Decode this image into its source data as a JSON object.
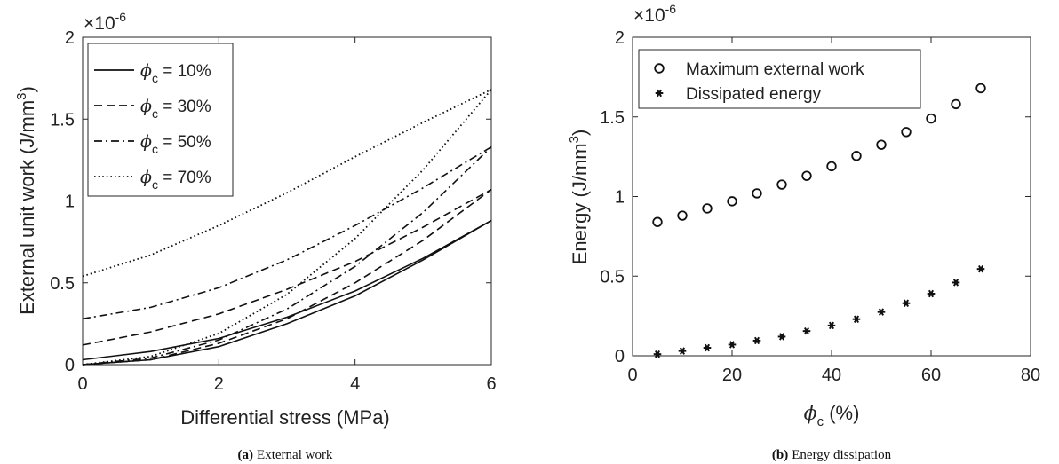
{
  "chart_data": [
    {
      "type": "line",
      "xlabel": "Differential stress (MPa)",
      "ylabel": "External unit work (J/mm",
      "ylabel_sup": "3",
      "ylabel_end": ")",
      "exponent_text": "×10",
      "exponent_power": "-6",
      "xlim": [
        0,
        6
      ],
      "ylim": [
        0,
        2
      ],
      "xticks": [
        "0",
        "2",
        "4",
        "6"
      ],
      "yticks": [
        "0",
        "0.5",
        "1",
        "1.5",
        "2"
      ],
      "legend_position": "top-left",
      "caption_label": "(a)",
      "caption_text": "External work",
      "series": [
        {
          "name": "ϕ",
          "name_sub": "c",
          "name_rest": " = 10%",
          "style": "solid",
          "branches": [
            {
              "x": [
                0,
                1,
                2,
                3,
                4,
                5,
                6
              ],
              "y": [
                0.0,
                0.03,
                0.11,
                0.25,
                0.42,
                0.64,
                0.88
              ]
            },
            {
              "x": [
                0,
                1,
                2,
                3,
                4,
                5,
                6
              ],
              "y": [
                0.03,
                0.08,
                0.16,
                0.29,
                0.45,
                0.65,
                0.88
              ]
            }
          ]
        },
        {
          "name": "ϕ",
          "name_sub": "c",
          "name_rest": " = 30%",
          "style": "dashed",
          "branches": [
            {
              "x": [
                0,
                1,
                2,
                3,
                4,
                5,
                6
              ],
              "y": [
                0.0,
                0.03,
                0.13,
                0.28,
                0.5,
                0.76,
                1.07
              ]
            },
            {
              "x": [
                0,
                1,
                2,
                3,
                4,
                5,
                6
              ],
              "y": [
                0.12,
                0.2,
                0.31,
                0.46,
                0.63,
                0.84,
                1.07
              ]
            }
          ]
        },
        {
          "name": "ϕ",
          "name_sub": "c",
          "name_rest": " = 50%",
          "style": "dashdot",
          "branches": [
            {
              "x": [
                0,
                1,
                2,
                3,
                4,
                5,
                6
              ],
              "y": [
                0.0,
                0.04,
                0.15,
                0.34,
                0.6,
                0.93,
                1.33
              ]
            },
            {
              "x": [
                0,
                1,
                2,
                3,
                4,
                5,
                6
              ],
              "y": [
                0.28,
                0.35,
                0.47,
                0.64,
                0.85,
                1.08,
                1.33
              ]
            }
          ]
        },
        {
          "name": "ϕ",
          "name_sub": "c",
          "name_rest": " = 70%",
          "style": "dotted",
          "branches": [
            {
              "x": [
                0,
                1,
                2,
                3,
                4,
                5,
                6
              ],
              "y": [
                0.0,
                0.05,
                0.19,
                0.43,
                0.77,
                1.19,
                1.68
              ]
            },
            {
              "x": [
                0,
                1,
                2,
                3,
                4,
                5,
                6
              ],
              "y": [
                0.54,
                0.67,
                0.85,
                1.05,
                1.27,
                1.48,
                1.68
              ]
            }
          ]
        }
      ]
    },
    {
      "type": "scatter",
      "xlabel": "ϕ",
      "xlabel_sub": "c",
      "xlabel_rest": " (%)",
      "ylabel": "Energy (J/mm",
      "ylabel_sup": "3",
      "ylabel_end": ")",
      "exponent_text": "×10",
      "exponent_power": "-6",
      "xlim": [
        0,
        80
      ],
      "ylim": [
        0,
        2
      ],
      "xticks": [
        "0",
        "20",
        "40",
        "60",
        "80"
      ],
      "yticks": [
        "0",
        "0.5",
        "1",
        "1.5",
        "2"
      ],
      "legend_position": "top-left",
      "caption_label": "(b)",
      "caption_text": "Energy dissipation",
      "x": [
        5,
        10,
        15,
        20,
        25,
        30,
        35,
        40,
        45,
        50,
        55,
        60,
        65,
        70
      ],
      "series": [
        {
          "name": "Maximum external work",
          "marker": "circle",
          "values": [
            0.84,
            0.88,
            0.925,
            0.97,
            1.02,
            1.075,
            1.13,
            1.19,
            1.255,
            1.325,
            1.405,
            1.49,
            1.58,
            1.68
          ]
        },
        {
          "name": "Dissipated energy",
          "marker": "asterisk",
          "values": [
            0.01,
            0.03,
            0.05,
            0.07,
            0.095,
            0.12,
            0.155,
            0.19,
            0.23,
            0.275,
            0.33,
            0.39,
            0.46,
            0.545
          ]
        }
      ]
    }
  ]
}
